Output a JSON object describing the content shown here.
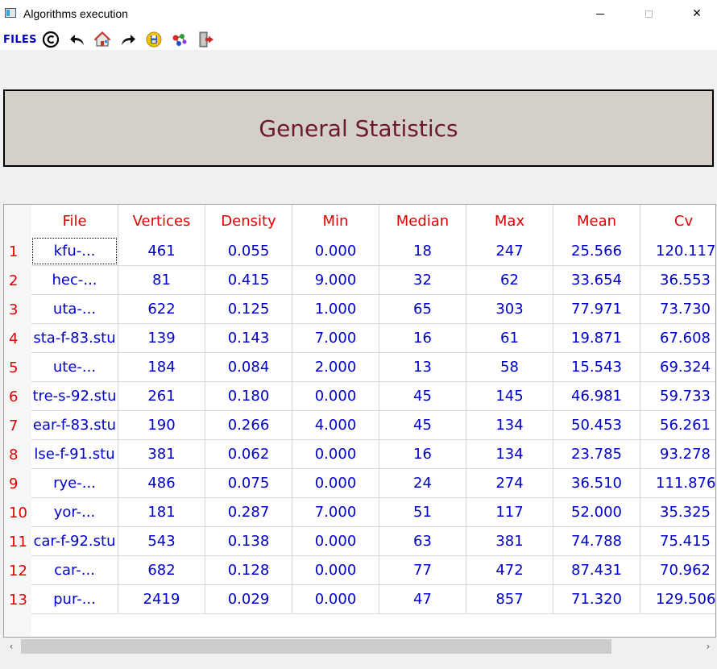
{
  "window": {
    "title": "Algorithms execution",
    "minimize_glyph": "—",
    "maximize_glyph": "☐",
    "close_glyph": "✕"
  },
  "toolbar": {
    "files_label": "FILES",
    "icons": [
      "copyright-icon",
      "undo-arrow-icon",
      "home-icon",
      "redo-arrow-icon",
      "save-disk-icon",
      "molecule-icon",
      "exit-door-icon"
    ]
  },
  "header": {
    "title": "General Statistics"
  },
  "table": {
    "columns": [
      "File",
      "Vertices",
      "Density",
      "Min",
      "Median",
      "Max",
      "Mean",
      "Cv"
    ],
    "rows": [
      {
        "num": "1",
        "cells": [
          "kfu-...",
          "461",
          "0.055",
          "0.000",
          "18",
          "247",
          "25.566",
          "120.117"
        ]
      },
      {
        "num": "2",
        "cells": [
          "hec-...",
          "81",
          "0.415",
          "9.000",
          "32",
          "62",
          "33.654",
          "36.553"
        ]
      },
      {
        "num": "3",
        "cells": [
          "uta-...",
          "622",
          "0.125",
          "1.000",
          "65",
          "303",
          "77.971",
          "73.730"
        ]
      },
      {
        "num": "4",
        "cells": [
          "sta-f-83.stu",
          "139",
          "0.143",
          "7.000",
          "16",
          "61",
          "19.871",
          "67.608"
        ]
      },
      {
        "num": "5",
        "cells": [
          "ute-...",
          "184",
          "0.084",
          "2.000",
          "13",
          "58",
          "15.543",
          "69.324"
        ]
      },
      {
        "num": "6",
        "cells": [
          "tre-s-92.stu",
          "261",
          "0.180",
          "0.000",
          "45",
          "145",
          "46.981",
          "59.733"
        ]
      },
      {
        "num": "7",
        "cells": [
          "ear-f-83.stu",
          "190",
          "0.266",
          "4.000",
          "45",
          "134",
          "50.453",
          "56.261"
        ]
      },
      {
        "num": "8",
        "cells": [
          "lse-f-91.stu",
          "381",
          "0.062",
          "0.000",
          "16",
          "134",
          "23.785",
          "93.278"
        ]
      },
      {
        "num": "9",
        "cells": [
          "rye-...",
          "486",
          "0.075",
          "0.000",
          "24",
          "274",
          "36.510",
          "111.876"
        ]
      },
      {
        "num": "10",
        "cells": [
          "yor-...",
          "181",
          "0.287",
          "7.000",
          "51",
          "117",
          "52.000",
          "35.325"
        ]
      },
      {
        "num": "11",
        "cells": [
          "car-f-92.stu",
          "543",
          "0.138",
          "0.000",
          "63",
          "381",
          "74.788",
          "75.415"
        ]
      },
      {
        "num": "12",
        "cells": [
          "car-...",
          "682",
          "0.128",
          "0.000",
          "77",
          "472",
          "87.431",
          "70.962"
        ]
      },
      {
        "num": "13",
        "cells": [
          "pur-...",
          "2419",
          "0.029",
          "0.000",
          "47",
          "857",
          "71.320",
          "129.506"
        ]
      }
    ]
  },
  "scrollbar": {
    "left_glyph": "‹",
    "right_glyph": "›"
  },
  "colors": {
    "header_text": "#6b1a2a",
    "header_bg": "#d4d0c8",
    "table_header_text": "#e00000",
    "cell_text": "#0000cc"
  }
}
